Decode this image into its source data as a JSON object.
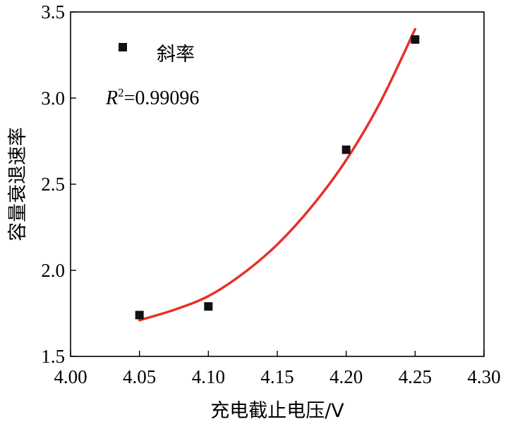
{
  "chart_data": {
    "type": "scatter",
    "xlabel": "充电截止电压/V",
    "ylabel": "容量衰退速率",
    "xlim": [
      4.0,
      4.3
    ],
    "ylim": [
      1.5,
      3.5
    ],
    "xticks": [
      "4.00",
      "4.05",
      "4.10",
      "4.15",
      "4.20",
      "4.25",
      "4.30"
    ],
    "yticks": [
      "1.5",
      "2.0",
      "2.5",
      "3.0",
      "3.5"
    ],
    "grid": false,
    "legend_position": "top-left",
    "series": [
      {
        "name": "斜率",
        "marker": "square",
        "color": "#111111",
        "x": [
          4.05,
          4.1,
          4.2,
          4.25
        ],
        "y": [
          1.74,
          1.79,
          2.7,
          3.34
        ]
      }
    ],
    "fit": {
      "color": "#e8302a",
      "x": [
        4.05,
        4.075,
        4.1,
        4.125,
        4.15,
        4.175,
        4.2,
        4.225,
        4.25
      ],
      "y": [
        1.71,
        1.77,
        1.85,
        1.98,
        2.15,
        2.37,
        2.64,
        2.98,
        3.4
      ]
    },
    "annotation": {
      "r_label": "R",
      "r_sup": "2",
      "r_value": "=0.99096"
    }
  }
}
